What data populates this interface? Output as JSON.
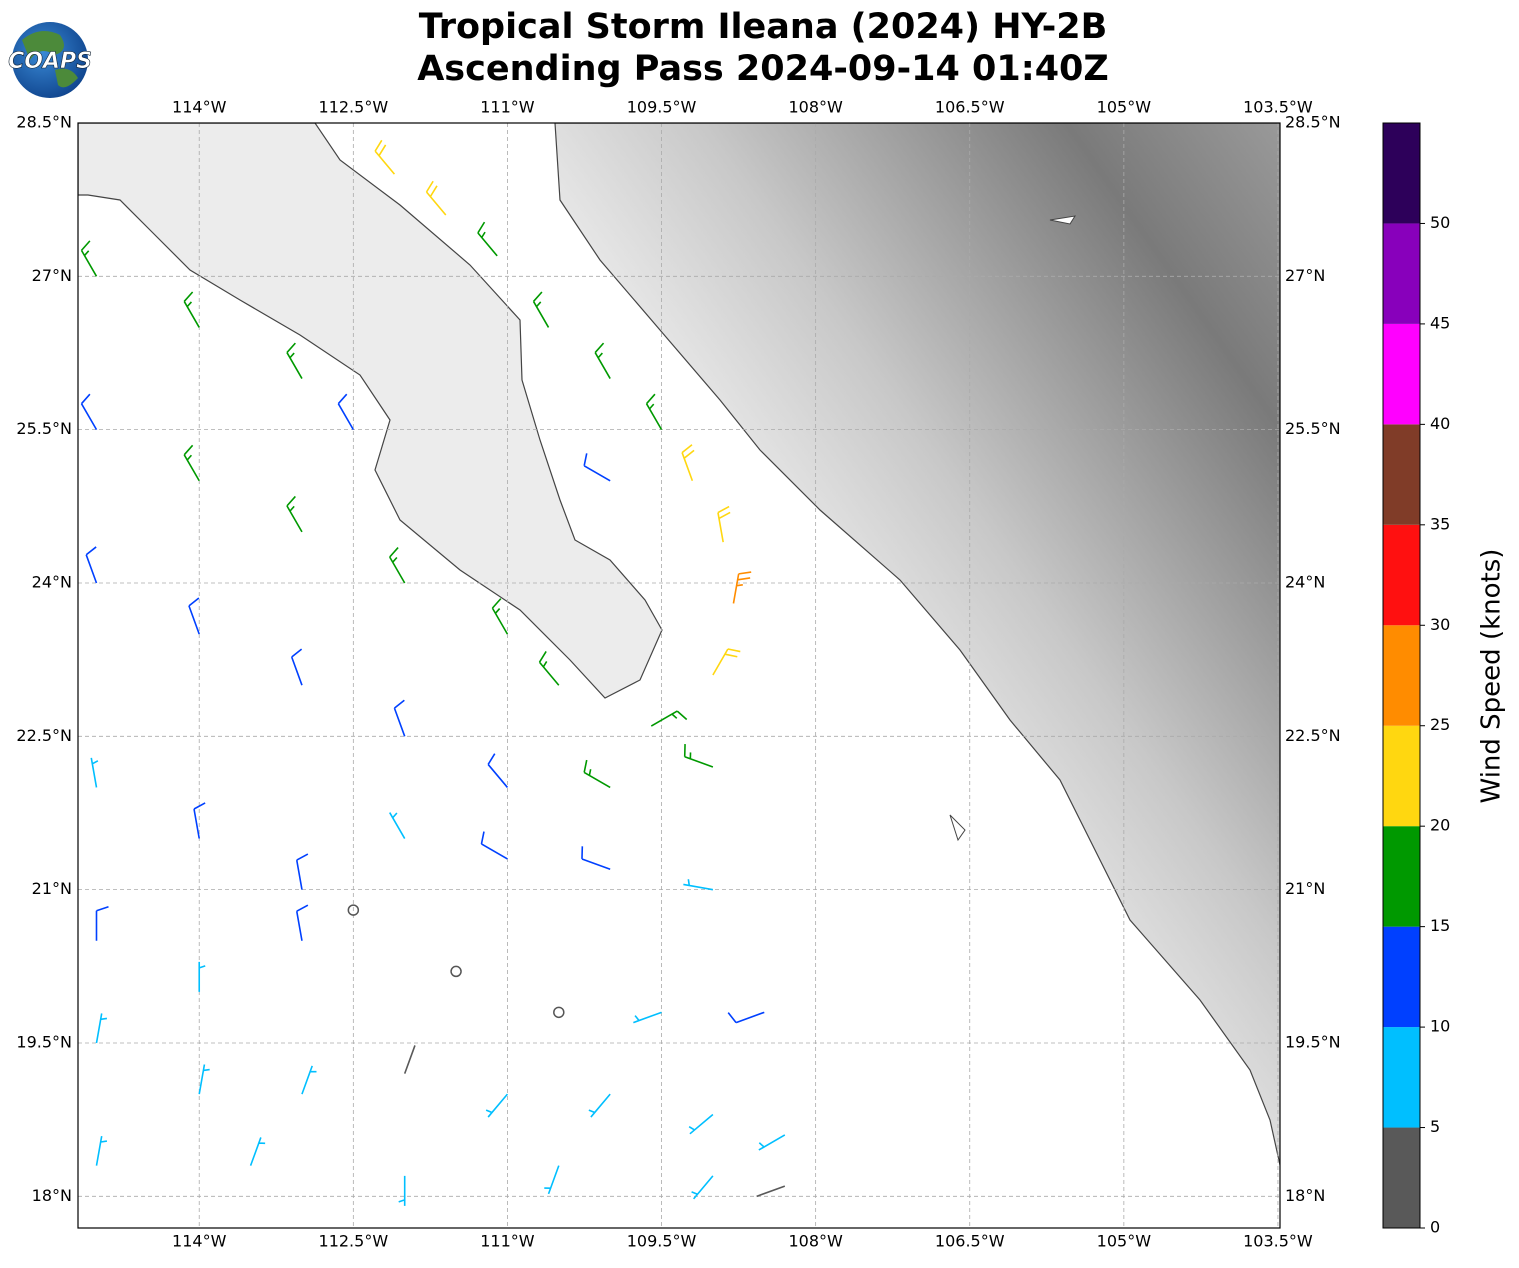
{
  "map": {
    "logo": "COAPS",
    "title": [
      "Tropical Storm Ileana (2024) HY-2B",
      "Ascending Pass 2024-09-14 01:40Z"
    ],
    "xlim": [
      -115.18,
      -103.48
    ],
    "ylim": [
      17.69,
      28.5
    ],
    "xticks": [
      {
        "value": -114,
        "label": "114°W"
      },
      {
        "value": -112.5,
        "label": "112.5°W"
      },
      {
        "value": -111,
        "label": "111°W"
      },
      {
        "value": -109.5,
        "label": "109.5°W"
      },
      {
        "value": -108,
        "label": "108°W"
      },
      {
        "value": -106.5,
        "label": "106.5°W"
      },
      {
        "value": -105,
        "label": "105°W"
      },
      {
        "value": -103.5,
        "label": "103.5°W"
      }
    ],
    "yticks": [
      {
        "value": 18,
        "label": "18°N"
      },
      {
        "value": 19.5,
        "label": "19.5°N"
      },
      {
        "value": 21,
        "label": "21°N"
      },
      {
        "value": 22.5,
        "label": "22.5°N"
      },
      {
        "value": 24,
        "label": "24°N"
      },
      {
        "value": 25.5,
        "label": "25.5°N"
      },
      {
        "value": 27,
        "label": "27°N"
      },
      {
        "value": 28.5,
        "label": "28.5°N"
      }
    ],
    "grid": true,
    "colorbar": {
      "label": "Wind Speed (knots)",
      "lim": [
        0,
        55
      ],
      "ticks": [
        0,
        5,
        10,
        15,
        20,
        25,
        30,
        35,
        40,
        45,
        50
      ],
      "bounds": [
        0,
        5,
        10,
        15,
        20,
        25,
        30,
        35,
        40,
        45,
        50,
        55
      ],
      "colors": [
        "#595959",
        "#00bfff",
        "#0040ff",
        "#009900",
        "#ffd710",
        "#ff8c00",
        "#ff1010",
        "#803c28",
        "#ff00ff",
        "#8800bb",
        "#2d005a"
      ]
    },
    "barbs": [
      [
        -112.1,
        28.0,
        22,
        320
      ],
      [
        -111.6,
        27.6,
        22,
        320
      ],
      [
        -111.1,
        27.2,
        17,
        320
      ],
      [
        -110.6,
        26.5,
        17,
        330
      ],
      [
        -110.0,
        26.0,
        17,
        330
      ],
      [
        -109.5,
        25.5,
        17,
        330
      ],
      [
        -110.0,
        25.0,
        12,
        300
      ],
      [
        -109.2,
        25.0,
        22,
        340
      ],
      [
        -108.9,
        24.4,
        22,
        350
      ],
      [
        -108.8,
        23.8,
        27,
        10
      ],
      [
        -109.0,
        23.1,
        22,
        30
      ],
      [
        -109.6,
        22.6,
        17,
        60
      ],
      [
        -115,
        27,
        17,
        330
      ],
      [
        -114,
        26.5,
        17,
        330
      ],
      [
        -113,
        26,
        17,
        330
      ],
      [
        -112.5,
        25.5,
        12,
        330
      ],
      [
        -115,
        25.5,
        12,
        330
      ],
      [
        -114,
        25,
        17,
        330
      ],
      [
        -113,
        24.5,
        17,
        330
      ],
      [
        -112,
        24,
        17,
        330
      ],
      [
        -111,
        23.5,
        17,
        330
      ],
      [
        -110.5,
        23,
        17,
        320
      ],
      [
        -115,
        24,
        12,
        340
      ],
      [
        -114,
        23.5,
        12,
        340
      ],
      [
        -113,
        23,
        12,
        340
      ],
      [
        -112,
        22.5,
        12,
        340
      ],
      [
        -111,
        22,
        12,
        320
      ],
      [
        -110,
        22,
        17,
        300
      ],
      [
        -109,
        22.2,
        17,
        290
      ],
      [
        -115,
        22,
        7,
        350
      ],
      [
        -114,
        21.5,
        12,
        350
      ],
      [
        -113,
        21,
        12,
        350
      ],
      [
        -112,
        21.5,
        7,
        330
      ],
      [
        -111,
        21.3,
        12,
        300
      ],
      [
        -110,
        21.2,
        12,
        290
      ],
      [
        -109,
        21,
        7,
        280
      ],
      [
        -115,
        20.5,
        12,
        0
      ],
      [
        -114,
        20,
        7,
        0
      ],
      [
        -113,
        20.5,
        12,
        350
      ],
      [
        -112.5,
        20.8,
        0,
        340
      ],
      [
        -111.5,
        20.2,
        0,
        0
      ],
      [
        -110.5,
        19.8,
        0,
        0
      ],
      [
        -109.5,
        19.8,
        7,
        250
      ],
      [
        -108.5,
        19.8,
        12,
        250
      ],
      [
        -115,
        19.5,
        7,
        10
      ],
      [
        -114,
        19,
        7,
        10
      ],
      [
        -113,
        19,
        7,
        20
      ],
      [
        -112,
        19.2,
        2,
        20
      ],
      [
        -111,
        19,
        7,
        220
      ],
      [
        -110,
        19,
        7,
        220
      ],
      [
        -109,
        18.8,
        7,
        230
      ],
      [
        -108.3,
        18.6,
        7,
        240
      ],
      [
        -115,
        18.3,
        7,
        10
      ],
      [
        -113.5,
        18.3,
        7,
        20
      ],
      [
        -112,
        18.2,
        7,
        180
      ],
      [
        -110.5,
        18.3,
        7,
        200
      ],
      [
        -109,
        18.2,
        7,
        220
      ],
      [
        -108.3,
        18.1,
        2,
        250
      ]
    ]
  }
}
